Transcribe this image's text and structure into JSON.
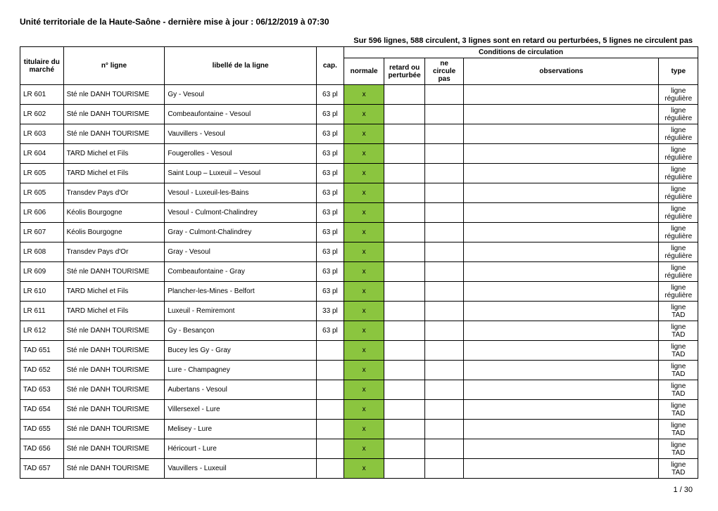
{
  "page": {
    "title": "Unité territoriale de la Haute-Saône - dernière mise à jour : 06/12/2019 à 07:30",
    "subtitle": "Sur 596 lignes, 588 circulent, 3 lignes sont en retard ou perturbées, 5 lignes ne circulent pas",
    "footer": "1 / 30"
  },
  "headers": {
    "titulaire": "titulaire du marché",
    "num": "n° ligne",
    "libelle": "libellé de la ligne",
    "cap": "cap.",
    "conditions": "Conditions de circulation",
    "normale": "normale",
    "retard": "retard ou perturbée",
    "pas": "ne circule pas",
    "obs": "observations",
    "type": "type"
  },
  "rows": [
    {
      "tit": "LR 601",
      "num": "Sté nle DANH TOURISME",
      "lib": "Gy - Vesoul",
      "cap": "63 pl",
      "norm": "x",
      "ret": "",
      "pas": "",
      "obs": "",
      "t1": "ligne",
      "t2": "régulière"
    },
    {
      "tit": "LR 602",
      "num": "Sté nle DANH TOURISME",
      "lib": "Combeaufontaine - Vesoul",
      "cap": "63 pl",
      "norm": "x",
      "ret": "",
      "pas": "",
      "obs": "",
      "t1": "ligne",
      "t2": "régulière"
    },
    {
      "tit": "LR 603",
      "num": "Sté nle DANH TOURISME",
      "lib": "Vauvillers - Vesoul",
      "cap": "63 pl",
      "norm": "x",
      "ret": "",
      "pas": "",
      "obs": "",
      "t1": "ligne",
      "t2": "régulière"
    },
    {
      "tit": "LR 604",
      "num": "TARD Michel et Fils",
      "lib": "Fougerolles - Vesoul",
      "cap": "63 pl",
      "norm": "x",
      "ret": "",
      "pas": "",
      "obs": "",
      "t1": "ligne",
      "t2": "régulière"
    },
    {
      "tit": "LR 605",
      "num": "TARD Michel et Fils",
      "lib": "Saint Loup – Luxeuil – Vesoul",
      "cap": "63 pl",
      "norm": "x",
      "ret": "",
      "pas": "",
      "obs": "",
      "t1": "ligne",
      "t2": "régulière"
    },
    {
      "tit": "LR 605",
      "num": "Transdev Pays d'Or",
      "lib": "Vesoul - Luxeuil-les-Bains",
      "cap": "63 pl",
      "norm": "x",
      "ret": "",
      "pas": "",
      "obs": "",
      "t1": "ligne",
      "t2": "régulière"
    },
    {
      "tit": "LR 606",
      "num": "Kéolis Bourgogne",
      "lib": "Vesoul - Culmont-Chalindrey",
      "cap": "63 pl",
      "norm": "x",
      "ret": "",
      "pas": "",
      "obs": "",
      "t1": "ligne",
      "t2": "régulière"
    },
    {
      "tit": "LR 607",
      "num": "Kéolis Bourgogne",
      "lib": "Gray - Culmont-Chalindrey",
      "cap": "63 pl",
      "norm": "x",
      "ret": "",
      "pas": "",
      "obs": "",
      "t1": "ligne",
      "t2": "régulière"
    },
    {
      "tit": "LR 608",
      "num": "Transdev Pays d'Or",
      "lib": "Gray - Vesoul",
      "cap": "63 pl",
      "norm": "x",
      "ret": "",
      "pas": "",
      "obs": "",
      "t1": "ligne",
      "t2": "régulière"
    },
    {
      "tit": "LR 609",
      "num": "Sté nle DANH TOURISME",
      "lib": "Combeaufontaine - Gray",
      "cap": "63 pl",
      "norm": "x",
      "ret": "",
      "pas": "",
      "obs": "",
      "t1": "ligne",
      "t2": "régulière"
    },
    {
      "tit": "LR 610",
      "num": "TARD Michel et Fils",
      "lib": "Plancher-les-Mines - Belfort",
      "cap": "63 pl",
      "norm": "x",
      "ret": "",
      "pas": "",
      "obs": "",
      "t1": "ligne",
      "t2": "régulière"
    },
    {
      "tit": "LR 611",
      "num": "TARD Michel et Fils",
      "lib": "Luxeuil - Remiremont",
      "cap": "33 pl",
      "norm": "x",
      "ret": "",
      "pas": "",
      "obs": "",
      "t1": "ligne",
      "t2": "TAD"
    },
    {
      "tit": "LR 612",
      "num": "Sté nle DANH TOURISME",
      "lib": "Gy - Besançon",
      "cap": "63 pl",
      "norm": "x",
      "ret": "",
      "pas": "",
      "obs": "",
      "t1": "ligne",
      "t2": "TAD"
    },
    {
      "tit": "TAD 651",
      "num": "Sté nle DANH TOURISME",
      "lib": "Bucey les Gy - Gray",
      "cap": "",
      "norm": "x",
      "ret": "",
      "pas": "",
      "obs": "",
      "t1": "ligne",
      "t2": "TAD"
    },
    {
      "tit": "TAD 652",
      "num": "Sté nle DANH TOURISME",
      "lib": "Lure - Champagney",
      "cap": "",
      "norm": "x",
      "ret": "",
      "pas": "",
      "obs": "",
      "t1": "ligne",
      "t2": "TAD"
    },
    {
      "tit": "TAD 653",
      "num": "Sté nle DANH TOURISME",
      "lib": "Aubertans - Vesoul",
      "cap": "",
      "norm": "x",
      "ret": "",
      "pas": "",
      "obs": "",
      "t1": "ligne",
      "t2": "TAD"
    },
    {
      "tit": "TAD 654",
      "num": "Sté nle DANH TOURISME",
      "lib": "Villersexel - Lure",
      "cap": "",
      "norm": "x",
      "ret": "",
      "pas": "",
      "obs": "",
      "t1": "ligne",
      "t2": "TAD"
    },
    {
      "tit": "TAD 655",
      "num": "Sté nle DANH TOURISME",
      "lib": "Melisey - Lure",
      "cap": "",
      "norm": "x",
      "ret": "",
      "pas": "",
      "obs": "",
      "t1": "ligne",
      "t2": "TAD"
    },
    {
      "tit": "TAD 656",
      "num": "Sté nle DANH TOURISME",
      "lib": "Héricourt - Lure",
      "cap": "",
      "norm": "x",
      "ret": "",
      "pas": "",
      "obs": "",
      "t1": "ligne",
      "t2": "TAD"
    },
    {
      "tit": "TAD 657",
      "num": "Sté nle DANH TOURISME",
      "lib": "Vauvillers - Luxeuil",
      "cap": "",
      "norm": "x",
      "ret": "",
      "pas": "",
      "obs": "",
      "t1": "ligne",
      "t2": "TAD"
    }
  ],
  "colors": {
    "green": "#8bc53f",
    "border": "#000000",
    "background": "#ffffff"
  }
}
